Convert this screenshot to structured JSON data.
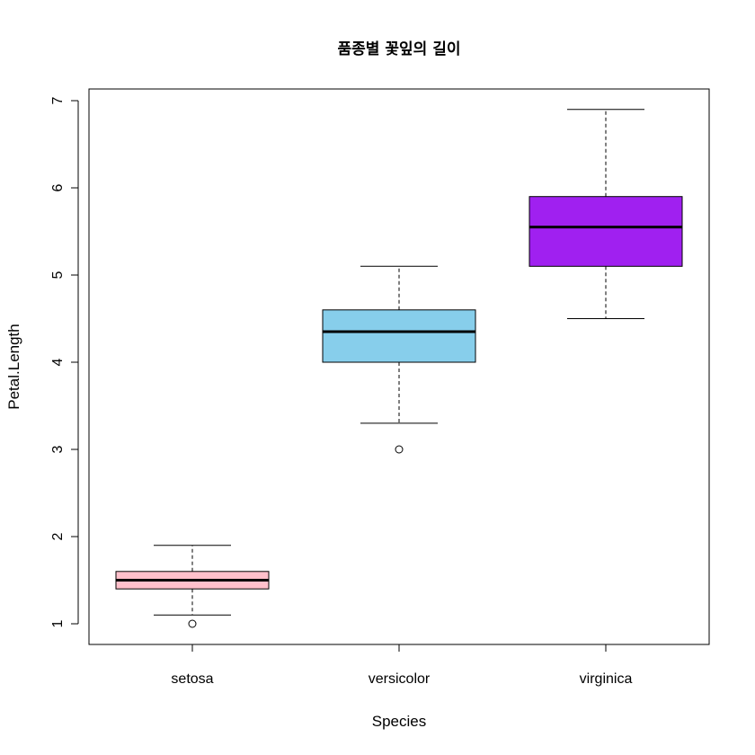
{
  "chart_data": {
    "type": "boxplot",
    "title": "품종별 꽃잎의 길이",
    "xlabel": "Species",
    "ylabel": "Petal.Length",
    "ylim": [
      0.8,
      7.15
    ],
    "yticks": [
      1,
      2,
      3,
      4,
      5,
      6,
      7
    ],
    "grid": false,
    "legend": "none",
    "categories": [
      "setosa",
      "versicolor",
      "virginica"
    ],
    "series": [
      {
        "category": "setosa",
        "color": "#ffc0cb",
        "whisker_low": 1.1,
        "q1": 1.4,
        "median": 1.5,
        "q3": 1.6,
        "whisker_high": 1.9,
        "outliers": [
          1.0
        ]
      },
      {
        "category": "versicolor",
        "color": "#87ceeb",
        "whisker_low": 3.3,
        "q1": 4.0,
        "median": 4.35,
        "q3": 4.6,
        "whisker_high": 5.1,
        "outliers": [
          3.0
        ]
      },
      {
        "category": "virginica",
        "color": "#a020f0",
        "whisker_low": 4.5,
        "q1": 5.1,
        "median": 5.55,
        "q3": 5.9,
        "whisker_high": 6.9,
        "outliers": []
      }
    ]
  }
}
